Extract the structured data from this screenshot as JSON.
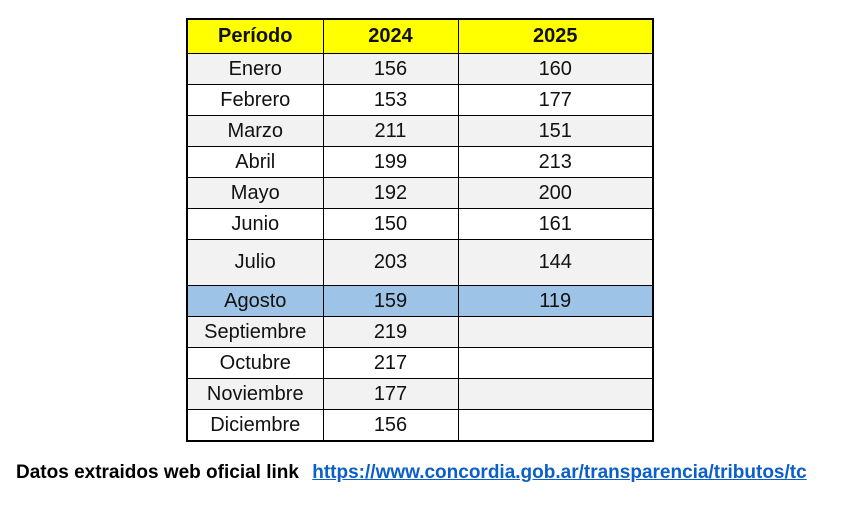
{
  "table": {
    "headers": [
      "Período",
      "2024",
      "2025"
    ],
    "rows": [
      [
        "Enero",
        "156",
        "160"
      ],
      [
        "Febrero",
        "153",
        "177"
      ],
      [
        "Marzo",
        "211",
        "151"
      ],
      [
        "Abril",
        "199",
        "213"
      ],
      [
        "Mayo",
        "192",
        "200"
      ],
      [
        "Junio",
        "150",
        "161"
      ],
      [
        "Julio",
        "203",
        "144"
      ],
      [
        "Agosto",
        "159",
        "119"
      ],
      [
        "Septiembre",
        "219",
        ""
      ],
      [
        "Octubre",
        "217",
        ""
      ],
      [
        "Noviembre",
        "177",
        ""
      ],
      [
        "Diciembre",
        "156",
        ""
      ]
    ],
    "header_color": "#ffff00",
    "highlight_color": "#9dc3e6"
  },
  "footer": {
    "source_text": "Datos extraidos web oficial link",
    "link_text": "https://www.concordia.gob.ar/transparencia/tributos/tc"
  }
}
